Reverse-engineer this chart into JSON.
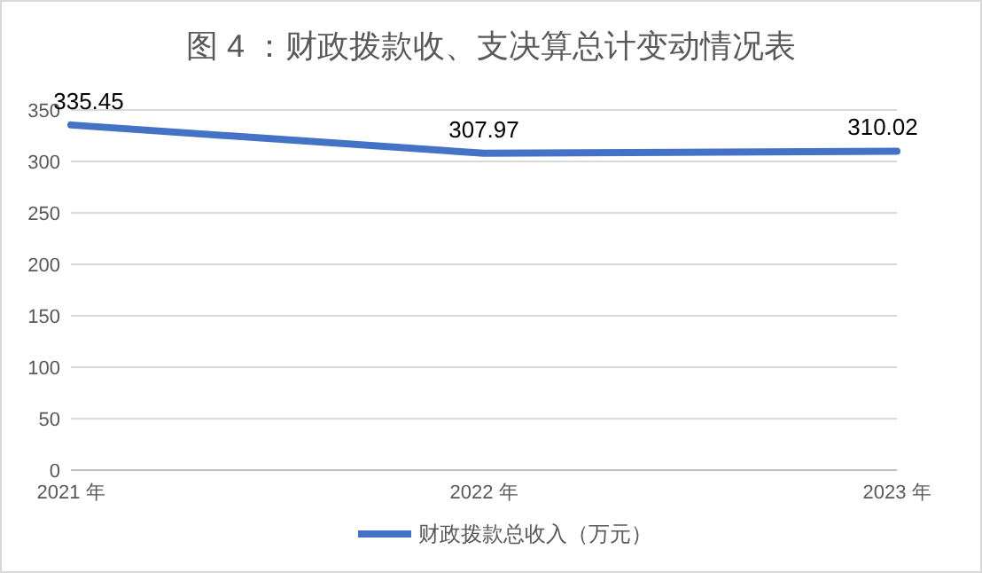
{
  "chart_data": {
    "type": "line",
    "title": "图 4 ：财政拨款收、支决算总计变动情况表",
    "categories": [
      "2021 年",
      "2022 年",
      "2023 年"
    ],
    "series": [
      {
        "name": "财政拨款总收入（万元）",
        "color": "#4472c4",
        "values": [
          335.45,
          307.97,
          310.02
        ]
      }
    ],
    "ylim": [
      0,
      350
    ],
    "yticks": [
      0,
      50,
      100,
      150,
      200,
      250,
      300,
      350
    ],
    "grid": "y",
    "legend": "bottom",
    "data_labels": true,
    "marker": "none"
  }
}
